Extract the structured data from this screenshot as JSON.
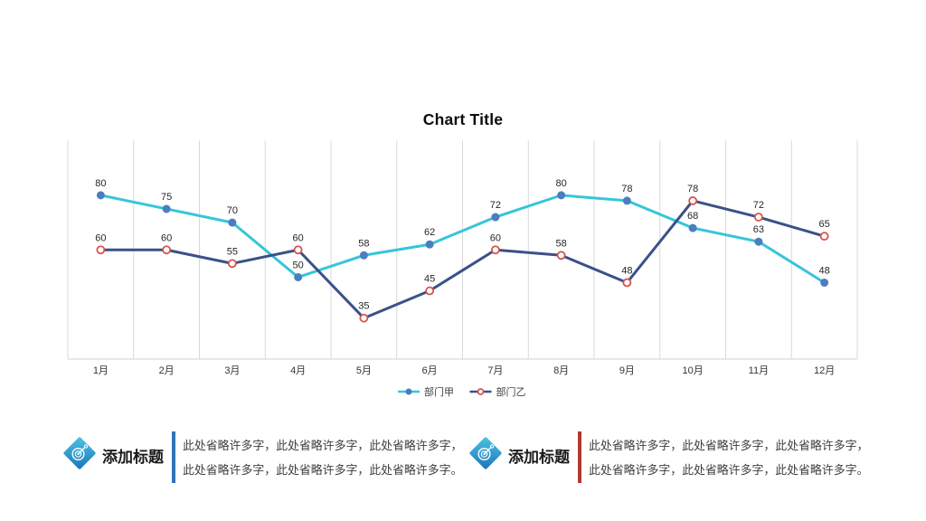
{
  "chart_data": {
    "type": "line",
    "title": "Chart Title",
    "categories": [
      "1月",
      "2月",
      "3月",
      "4月",
      "5月",
      "6月",
      "7月",
      "8月",
      "9月",
      "10月",
      "11月",
      "12月"
    ],
    "series": [
      {
        "name": "部门甲",
        "values": [
          80,
          75,
          70,
          50,
          58,
          62,
          72,
          80,
          78,
          68,
          63,
          48
        ],
        "line_color": "#36C5DA",
        "marker": "filled-circle",
        "marker_color": "#4B7EBE"
      },
      {
        "name": "部门乙",
        "values": [
          60,
          60,
          55,
          60,
          35,
          45,
          60,
          58,
          48,
          78,
          72,
          65
        ],
        "line_color": "#3A5189",
        "marker": "open-circle",
        "marker_color": "#D5544D"
      }
    ],
    "ylim": [
      20,
      100
    ],
    "xlabel": "",
    "ylabel": "",
    "grid": "vertical-only",
    "grid_color": "#D9D9D9",
    "axis_color": "#D9D9D9",
    "label_color": "#333333",
    "data_label_color": "#262626",
    "legend_position": "bottom-center",
    "legend_text_color": "#404040",
    "data_labels": true
  },
  "footer": {
    "blocks": [
      {
        "icon": "target-diamond-icon",
        "title": "添加标题",
        "divider_color": "#2E75B6",
        "lines": [
          "此处省略许多字，此处省略许多字，此处省略许多字，",
          "此处省略许多字，此处省略许多字，此处省略许多字。"
        ]
      },
      {
        "icon": "target-diamond-icon",
        "title": "添加标题",
        "divider_color": "#B03A2E",
        "lines": [
          "此处省略许多字，此处省略许多字，此处省略许多字，",
          "此处省略许多字，此处省略许多字，此处省略许多字。"
        ]
      }
    ]
  },
  "icon_colors": {
    "gradient_start": "#4CC4E0",
    "gradient_end": "#1D74BC"
  }
}
